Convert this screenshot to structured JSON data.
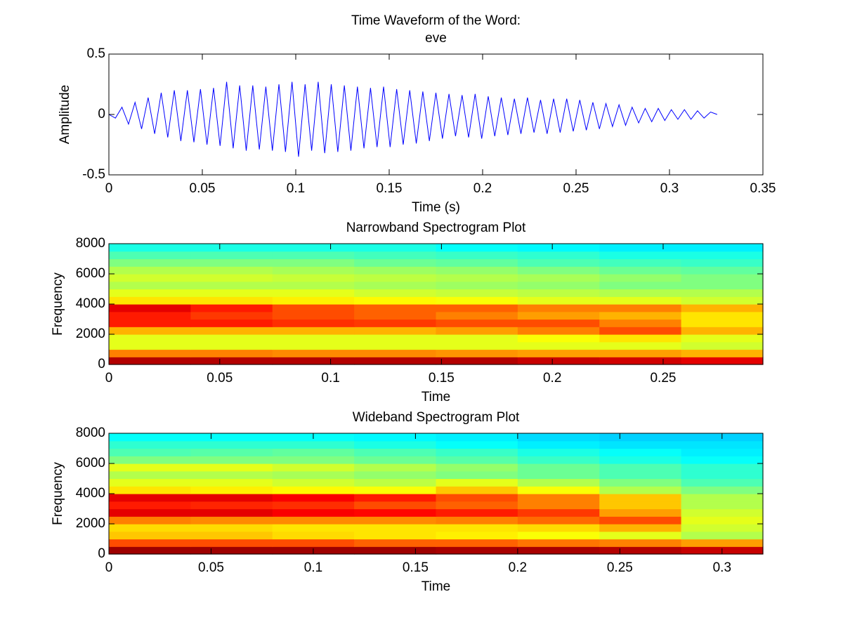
{
  "chart_data": [
    {
      "type": "line",
      "title": [
        "Time Waveform of the Word:",
        "eve"
      ],
      "x_label": "Time (s)",
      "y_label": "Amplitude",
      "xlim": [
        0,
        0.35
      ],
      "ylim": [
        -0.5,
        0.5
      ],
      "xticks": [
        0,
        0.05,
        0.1,
        0.15,
        0.2,
        0.25,
        0.3,
        0.35
      ],
      "yticks": [
        -0.5,
        0,
        0.5
      ],
      "grid": false,
      "series": [
        {
          "color": "#0000ff",
          "x": [
            0,
            0.0035,
            0.007,
            0.0105,
            0.014,
            0.0175,
            0.021,
            0.0245,
            0.028,
            0.0315,
            0.035,
            0.0385,
            0.042,
            0.0455,
            0.049,
            0.0525,
            0.056,
            0.0595,
            0.063,
            0.0665,
            0.07,
            0.0735,
            0.077,
            0.0805,
            0.084,
            0.0875,
            0.091,
            0.0945,
            0.098,
            0.1015,
            0.105,
            0.1085,
            0.112,
            0.1155,
            0.119,
            0.1225,
            0.126,
            0.1295,
            0.133,
            0.1365,
            0.14,
            0.1435,
            0.147,
            0.1505,
            0.154,
            0.1575,
            0.161,
            0.1645,
            0.168,
            0.1715,
            0.175,
            0.1785,
            0.182,
            0.1855,
            0.189,
            0.1925,
            0.196,
            0.1995,
            0.203,
            0.2065,
            0.21,
            0.2135,
            0.217,
            0.2205,
            0.224,
            0.2275,
            0.231,
            0.2345,
            0.238,
            0.2415,
            0.245,
            0.2485,
            0.252,
            0.2555,
            0.259,
            0.2625,
            0.266,
            0.2695,
            0.273,
            0.2765,
            0.28,
            0.2835,
            0.287,
            0.2905,
            0.294,
            0.2975,
            0.301,
            0.3045,
            0.308,
            0.3115,
            0.315,
            0.3185,
            0.322,
            0.3255
          ],
          "values": [
            0,
            -0.03,
            0.06,
            -0.08,
            0.1,
            -0.12,
            0.14,
            -0.16,
            0.18,
            -0.19,
            0.2,
            -0.22,
            0.2,
            -0.23,
            0.21,
            -0.25,
            0.22,
            -0.26,
            0.27,
            -0.28,
            0.24,
            -0.3,
            0.24,
            -0.29,
            0.23,
            -0.3,
            0.25,
            -0.31,
            0.27,
            -0.35,
            0.25,
            -0.3,
            0.27,
            -0.32,
            0.25,
            -0.31,
            0.24,
            -0.3,
            0.23,
            -0.28,
            0.22,
            -0.27,
            0.23,
            -0.27,
            0.21,
            -0.25,
            0.2,
            -0.24,
            0.19,
            -0.22,
            0.18,
            -0.2,
            0.17,
            -0.18,
            0.16,
            -0.19,
            0.17,
            -0.2,
            0.15,
            -0.18,
            0.14,
            -0.17,
            0.13,
            -0.16,
            0.14,
            -0.15,
            0.12,
            -0.16,
            0.13,
            -0.15,
            0.13,
            -0.14,
            0.12,
            -0.13,
            0.1,
            -0.12,
            0.09,
            -0.1,
            0.08,
            -0.09,
            0.06,
            -0.07,
            0.05,
            -0.06,
            0.05,
            -0.05,
            0.04,
            -0.04,
            0.04,
            -0.04,
            0.03,
            -0.03,
            0.02,
            0
          ]
        }
      ]
    },
    {
      "type": "heatmap",
      "title": [
        "Narrowband Spectrogram Plot"
      ],
      "x_label": "Time",
      "y_label": "Frequency",
      "colormap": "jet",
      "xlim": [
        0,
        0.295
      ],
      "ylim": [
        0,
        8000
      ],
      "xticks": [
        0,
        0.05,
        0.1,
        0.15,
        0.2,
        0.25
      ],
      "yticks": [
        0,
        2000,
        4000,
        6000,
        8000
      ],
      "z": [
        [
          0.95,
          0.95,
          0.95,
          0.95,
          0.95,
          0.93,
          0.92,
          0.9
        ],
        [
          0.75,
          0.75,
          0.74,
          0.74,
          0.73,
          0.72,
          0.72,
          0.7
        ],
        [
          0.6,
          0.6,
          0.6,
          0.6,
          0.6,
          0.6,
          0.6,
          0.58
        ],
        [
          0.6,
          0.6,
          0.6,
          0.6,
          0.6,
          0.62,
          0.65,
          0.6
        ],
        [
          0.7,
          0.7,
          0.7,
          0.7,
          0.72,
          0.75,
          0.8,
          0.7
        ],
        [
          0.85,
          0.85,
          0.83,
          0.82,
          0.8,
          0.8,
          0.75,
          0.65
        ],
        [
          0.85,
          0.82,
          0.8,
          0.78,
          0.75,
          0.72,
          0.7,
          0.65
        ],
        [
          0.9,
          0.85,
          0.8,
          0.78,
          0.78,
          0.75,
          0.75,
          0.7
        ],
        [
          0.65,
          0.65,
          0.64,
          0.63,
          0.62,
          0.6,
          0.6,
          0.58
        ],
        [
          0.6,
          0.6,
          0.6,
          0.58,
          0.57,
          0.56,
          0.55,
          0.55
        ],
        [
          0.55,
          0.55,
          0.55,
          0.54,
          0.53,
          0.52,
          0.5,
          0.5
        ],
        [
          0.58,
          0.58,
          0.57,
          0.56,
          0.55,
          0.54,
          0.52,
          0.5
        ],
        [
          0.55,
          0.55,
          0.54,
          0.53,
          0.52,
          0.5,
          0.48,
          0.47
        ],
        [
          0.5,
          0.5,
          0.5,
          0.48,
          0.47,
          0.45,
          0.44,
          0.43
        ],
        [
          0.45,
          0.45,
          0.45,
          0.44,
          0.43,
          0.42,
          0.4,
          0.4
        ],
        [
          0.4,
          0.4,
          0.4,
          0.4,
          0.38,
          0.37,
          0.36,
          0.36
        ]
      ]
    },
    {
      "type": "heatmap",
      "title": [
        "Wideband Spectrogram Plot"
      ],
      "x_label": "Time",
      "y_label": "Frequency",
      "colormap": "jet",
      "xlim": [
        0,
        0.32
      ],
      "ylim": [
        0,
        8000
      ],
      "xticks": [
        0,
        0.05,
        0.1,
        0.15,
        0.2,
        0.25,
        0.3
      ],
      "yticks": [
        0,
        2000,
        4000,
        6000,
        8000
      ],
      "z": [
        [
          0.97,
          0.97,
          0.97,
          0.97,
          0.96,
          0.96,
          0.95,
          0.93
        ],
        [
          0.8,
          0.8,
          0.8,
          0.78,
          0.78,
          0.76,
          0.75,
          0.72
        ],
        [
          0.68,
          0.68,
          0.66,
          0.65,
          0.64,
          0.62,
          0.6,
          0.55
        ],
        [
          0.66,
          0.66,
          0.65,
          0.65,
          0.65,
          0.66,
          0.7,
          0.58
        ],
        [
          0.75,
          0.74,
          0.74,
          0.74,
          0.75,
          0.77,
          0.8,
          0.6
        ],
        [
          0.9,
          0.9,
          0.88,
          0.87,
          0.85,
          0.82,
          0.72,
          0.58
        ],
        [
          0.85,
          0.84,
          0.83,
          0.8,
          0.78,
          0.75,
          0.68,
          0.55
        ],
        [
          0.9,
          0.9,
          0.88,
          0.85,
          0.8,
          0.75,
          0.68,
          0.55
        ],
        [
          0.65,
          0.64,
          0.63,
          0.62,
          0.68,
          0.62,
          0.55,
          0.5
        ],
        [
          0.6,
          0.6,
          0.58,
          0.56,
          0.6,
          0.55,
          0.5,
          0.45
        ],
        [
          0.55,
          0.55,
          0.54,
          0.52,
          0.5,
          0.48,
          0.45,
          0.42
        ],
        [
          0.6,
          0.6,
          0.58,
          0.55,
          0.52,
          0.48,
          0.45,
          0.42
        ],
        [
          0.5,
          0.5,
          0.5,
          0.48,
          0.46,
          0.43,
          0.4,
          0.38
        ],
        [
          0.45,
          0.46,
          0.47,
          0.45,
          0.43,
          0.4,
          0.38,
          0.36
        ],
        [
          0.42,
          0.42,
          0.42,
          0.4,
          0.38,
          0.36,
          0.35,
          0.35
        ],
        [
          0.38,
          0.38,
          0.38,
          0.37,
          0.36,
          0.34,
          0.33,
          0.33
        ]
      ]
    }
  ]
}
